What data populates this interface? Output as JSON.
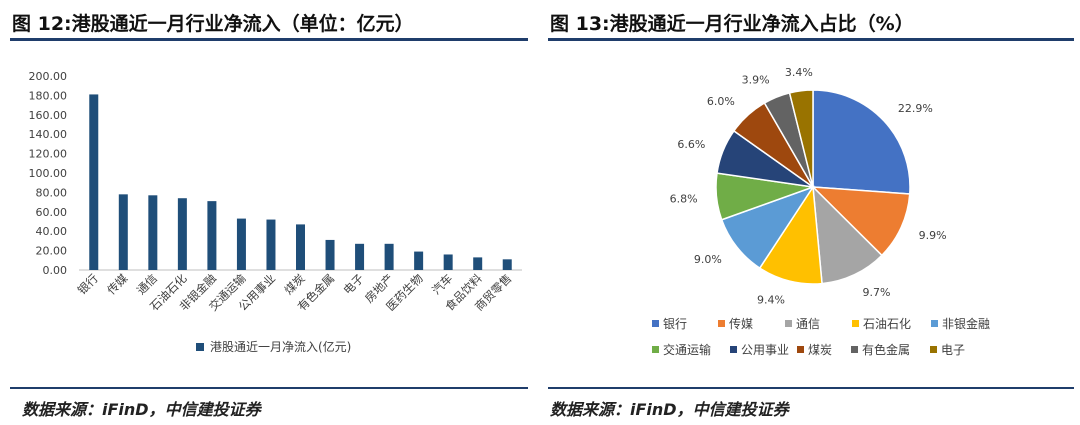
{
  "left": {
    "title": "图 12:港股通近一月行业净流入（单位：亿元）",
    "source": "数据来源：iFinD，中信建投证券"
  },
  "right": {
    "title": "图 13:港股通近一月行业净流入占比（%）",
    "source": "数据来源：iFinD，中信建投证券"
  },
  "chart_data": [
    {
      "type": "bar",
      "title": "",
      "categories": [
        "银行",
        "传媒",
        "通信",
        "石油石化",
        "非银金融",
        "交通运输",
        "公用事业",
        "煤炭",
        "有色金属",
        "电子",
        "房地产",
        "医药生物",
        "汽车",
        "食品饮料",
        "商贸零售"
      ],
      "series": [
        {
          "name": "港股通近一月净流入(亿元)",
          "values": [
            181,
            78,
            77,
            74,
            71,
            53,
            52,
            47,
            31,
            27,
            27,
            19,
            16,
            13,
            11
          ]
        }
      ],
      "ylim": [
        0,
        200
      ],
      "yticks": [
        "0.00",
        "20.00",
        "40.00",
        "60.00",
        "80.00",
        "100.00",
        "120.00",
        "140.00",
        "160.00",
        "180.00",
        "200.00"
      ],
      "grid": false,
      "legend": "bottom",
      "color": "#1f4e79"
    },
    {
      "type": "pie",
      "title": "",
      "categories": [
        "银行",
        "传媒",
        "通信",
        "石油石化",
        "非银金融",
        "交通运输",
        "公用事业",
        "煤炭",
        "有色金属",
        "电子"
      ],
      "values": [
        22.9,
        9.9,
        9.7,
        9.4,
        9.0,
        6.8,
        6.6,
        6.0,
        3.9,
        3.4
      ],
      "labels": [
        "22.9%",
        "9.9%",
        "9.7%",
        "9.4%",
        "9.0%",
        "6.8%",
        "6.6%",
        "6.0%",
        "3.9%",
        "3.4%"
      ],
      "colors": [
        "#4472c4",
        "#ed7d31",
        "#a5a5a5",
        "#ffc000",
        "#5b9bd5",
        "#70ad47",
        "#264478",
        "#9e480e",
        "#636363",
        "#997300"
      ],
      "legend": "bottom"
    }
  ]
}
